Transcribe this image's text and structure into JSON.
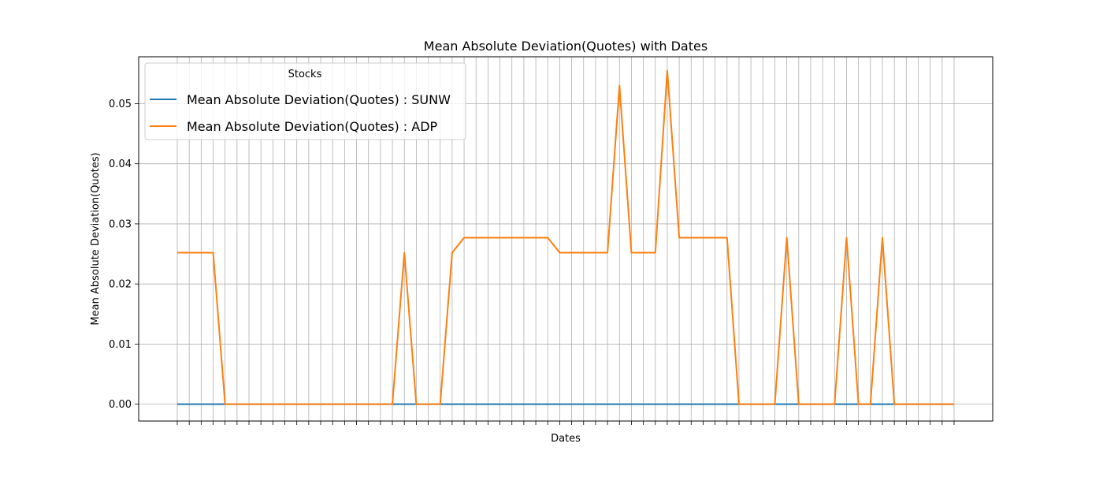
{
  "chart_data": {
    "type": "line",
    "title": "Mean Absolute Deviation(Quotes) with Dates",
    "xlabel": "Dates",
    "ylabel": "Mean Absolute Deviation(Quotes)",
    "x": [
      1,
      2,
      3,
      4,
      5,
      6,
      7,
      8,
      9,
      10,
      11,
      12,
      13,
      14,
      15,
      16,
      17,
      18,
      19,
      20,
      21,
      22,
      23,
      24,
      25,
      26,
      27,
      28,
      29,
      30,
      31,
      32,
      33,
      34,
      35,
      36,
      37,
      38,
      39,
      40,
      41,
      42,
      43,
      44,
      45,
      46,
      47,
      48,
      49,
      50,
      51,
      52,
      53,
      54,
      55,
      56,
      57,
      58,
      59,
      60,
      61,
      62,
      63,
      64,
      65,
      66
    ],
    "ylim": [
      -0.0028,
      0.0578
    ],
    "yticks": [
      0.0,
      0.01,
      0.02,
      0.03,
      0.04,
      0.05
    ],
    "ytick_labels": [
      "0.00",
      "0.01",
      "0.02",
      "0.03",
      "0.04",
      "0.05"
    ],
    "grid": true,
    "legend": {
      "title": "Stocks",
      "position": "top-left"
    },
    "series": [
      {
        "name": "Mean Absolute Deviation(Quotes) : SUNW",
        "color": "#1f77b4",
        "values": [
          0,
          0,
          0,
          0,
          0,
          0,
          0,
          0,
          0,
          0,
          0,
          0,
          0,
          0,
          0,
          0,
          0,
          0,
          0,
          0,
          0,
          0,
          0,
          0,
          0,
          0,
          0,
          0,
          0,
          0,
          0,
          0,
          0,
          0,
          0,
          0,
          0,
          0,
          0,
          0,
          0,
          0,
          0,
          0,
          0,
          0,
          0,
          0,
          0,
          0,
          0,
          0,
          0,
          0,
          0,
          0,
          0,
          0,
          0,
          0,
          0,
          0,
          0,
          0,
          0,
          0
        ]
      },
      {
        "name": "Mean Absolute Deviation(Quotes) : ADP",
        "color": "#ff7f0e",
        "values": [
          0.0252,
          0.0252,
          0.0252,
          0.0252,
          0,
          0,
          0,
          0,
          0,
          0,
          0,
          0,
          0,
          0,
          0,
          0,
          0,
          0,
          0,
          0.0252,
          0,
          0,
          0,
          0.0252,
          0.0277,
          0.0277,
          0.0277,
          0.0277,
          0.0277,
          0.0277,
          0.0277,
          0.0277,
          0.0252,
          0.0252,
          0.0252,
          0.0252,
          0.0252,
          0.053,
          0.0252,
          0.0252,
          0.0252,
          0.0555,
          0.0277,
          0.0277,
          0.0277,
          0.0277,
          0.0277,
          0,
          0,
          0,
          0,
          0.0277,
          0,
          0,
          0,
          0,
          0.0277,
          0,
          0,
          0.0277,
          0,
          0,
          0,
          0,
          0,
          0
        ]
      }
    ]
  }
}
